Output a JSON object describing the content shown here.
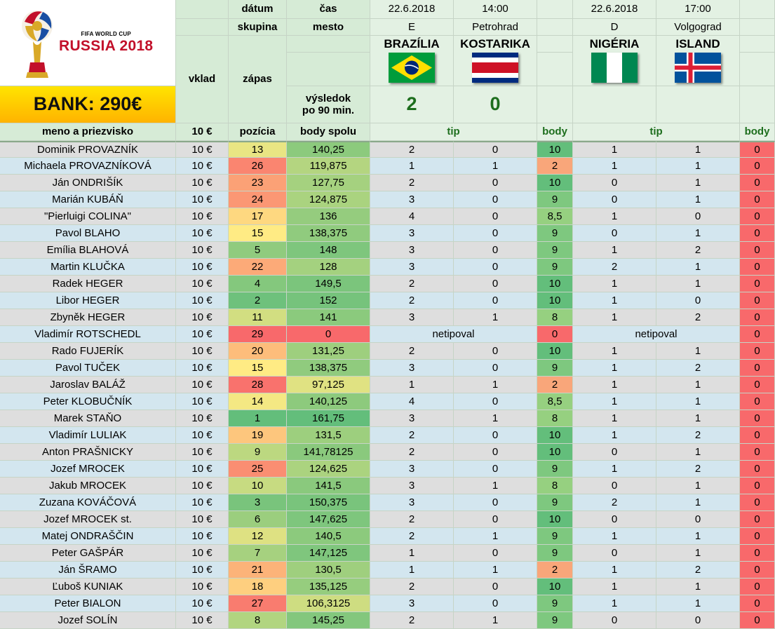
{
  "header": {
    "labels": {
      "datum": "dátum",
      "skupina": "skupina",
      "cas": "čas",
      "mesto": "mesto",
      "vklad": "vklad",
      "zapas": "zápas",
      "vysledok_line1": "výsledok",
      "vysledok_line2": "po 90 min.",
      "meno": "meno a priezvisko",
      "vklad_amount": "10 €",
      "pozicia": "pozícia",
      "body_spolu": "body spolu",
      "tip": "tip",
      "body": "body"
    },
    "logo": {
      "line1": "FIFA WORLD CUP",
      "line2": "RUSSIA 2018"
    },
    "bank": "BANK: 290€"
  },
  "matches": [
    {
      "date": "22.6.2018",
      "time": "14:00",
      "group": "E",
      "city": "Petrohrad",
      "home": "BRAZÍLIA",
      "away": "KOSTARIKA",
      "home_flag": "brazil-flag",
      "away_flag": "costa-rica-flag",
      "home_score": "2",
      "away_score": "0"
    },
    {
      "date": "22.6.2018",
      "time": "17:00",
      "group": "D",
      "city": "Volgograd",
      "home": "NIGÉRIA",
      "away": "ISLAND",
      "home_flag": "nigeria-flag",
      "away_flag": "iceland-flag",
      "home_score": "",
      "away_score": ""
    }
  ],
  "colors": {
    "header_green": "#d6ebd6",
    "text_green": "#1d6e1d",
    "bank_yellow": "#ffcc00",
    "points_red": "#f8696b",
    "points_green": "#63be7b"
  },
  "rows": [
    {
      "name": "Dominik PROVAZNÍK",
      "vklad": "10 €",
      "pos": "13",
      "total": "140,25",
      "t1": [
        "2",
        "0"
      ],
      "b1": "10",
      "t2": [
        "1",
        "1"
      ],
      "b2": "0"
    },
    {
      "name": "Michaela PROVAZNÍKOVÁ",
      "vklad": "10 €",
      "pos": "26",
      "total": "119,875",
      "t1": [
        "1",
        "1"
      ],
      "b1": "2",
      "t2": [
        "1",
        "1"
      ],
      "b2": "0"
    },
    {
      "name": "Ján ONDRIŠÍK",
      "vklad": "10 €",
      "pos": "23",
      "total": "127,75",
      "t1": [
        "2",
        "0"
      ],
      "b1": "10",
      "t2": [
        "0",
        "1"
      ],
      "b2": "0"
    },
    {
      "name": "Marián KUBÁŇ",
      "vklad": "10 €",
      "pos": "24",
      "total": "124,875",
      "t1": [
        "3",
        "0"
      ],
      "b1": "9",
      "t2": [
        "0",
        "1"
      ],
      "b2": "0"
    },
    {
      "name": "\"Pierluigi COLINA\"",
      "vklad": "10 €",
      "pos": "17",
      "total": "136",
      "t1": [
        "4",
        "0"
      ],
      "b1": "8,5",
      "t2": [
        "1",
        "0"
      ],
      "b2": "0"
    },
    {
      "name": "Pavol BLAHO",
      "vklad": "10 €",
      "pos": "15",
      "total": "138,375",
      "t1": [
        "3",
        "0"
      ],
      "b1": "9",
      "t2": [
        "0",
        "1"
      ],
      "b2": "0"
    },
    {
      "name": "Emília BLAHOVÁ",
      "vklad": "10 €",
      "pos": "5",
      "total": "148",
      "t1": [
        "3",
        "0"
      ],
      "b1": "9",
      "t2": [
        "1",
        "2"
      ],
      "b2": "0"
    },
    {
      "name": "Martin KLUČKA",
      "vklad": "10 €",
      "pos": "22",
      "total": "128",
      "t1": [
        "3",
        "0"
      ],
      "b1": "9",
      "t2": [
        "2",
        "1"
      ],
      "b2": "0"
    },
    {
      "name": "Radek HEGER",
      "vklad": "10 €",
      "pos": "4",
      "total": "149,5",
      "t1": [
        "2",
        "0"
      ],
      "b1": "10",
      "t2": [
        "1",
        "1"
      ],
      "b2": "0"
    },
    {
      "name": "Libor HEGER",
      "vklad": "10 €",
      "pos": "2",
      "total": "152",
      "t1": [
        "2",
        "0"
      ],
      "b1": "10",
      "t2": [
        "1",
        "0"
      ],
      "b2": "0"
    },
    {
      "name": "Zbyněk HEGER",
      "vklad": "10 €",
      "pos": "11",
      "total": "141",
      "t1": [
        "3",
        "1"
      ],
      "b1": "8",
      "t2": [
        "1",
        "2"
      ],
      "b2": "0"
    },
    {
      "name": "Vladimír ROTSCHEDL",
      "vklad": "10 €",
      "pos": "29",
      "total": "0",
      "note1": "netipoval",
      "b1": "0",
      "note2": "netipoval",
      "b2": "0"
    },
    {
      "name": "Rado FUJERÍK",
      "vklad": "10 €",
      "pos": "20",
      "total": "131,25",
      "t1": [
        "2",
        "0"
      ],
      "b1": "10",
      "t2": [
        "1",
        "1"
      ],
      "b2": "0"
    },
    {
      "name": "Pavol TUČEK",
      "vklad": "10 €",
      "pos": "15",
      "total": "138,375",
      "t1": [
        "3",
        "0"
      ],
      "b1": "9",
      "t2": [
        "1",
        "2"
      ],
      "b2": "0"
    },
    {
      "name": "Jaroslav BALÁŽ",
      "vklad": "10 €",
      "pos": "28",
      "total": "97,125",
      "t1": [
        "1",
        "1"
      ],
      "b1": "2",
      "t2": [
        "1",
        "1"
      ],
      "b2": "0"
    },
    {
      "name": "Peter KLOBUČNÍK",
      "vklad": "10 €",
      "pos": "14",
      "total": "140,125",
      "t1": [
        "4",
        "0"
      ],
      "b1": "8,5",
      "t2": [
        "1",
        "1"
      ],
      "b2": "0"
    },
    {
      "name": "Marek STAŇO",
      "vklad": "10 €",
      "pos": "1",
      "total": "161,75",
      "t1": [
        "3",
        "1"
      ],
      "b1": "8",
      "t2": [
        "1",
        "1"
      ],
      "b2": "0"
    },
    {
      "name": "Vladimír LULIAK",
      "vklad": "10 €",
      "pos": "19",
      "total": "131,5",
      "t1": [
        "2",
        "0"
      ],
      "b1": "10",
      "t2": [
        "1",
        "2"
      ],
      "b2": "0"
    },
    {
      "name": "Anton PRAŠNICKY",
      "vklad": "10 €",
      "pos": "9",
      "total": "141,78125",
      "t1": [
        "2",
        "0"
      ],
      "b1": "10",
      "t2": [
        "0",
        "1"
      ],
      "b2": "0"
    },
    {
      "name": "Jozef MROCEK",
      "vklad": "10 €",
      "pos": "25",
      "total": "124,625",
      "t1": [
        "3",
        "0"
      ],
      "b1": "9",
      "t2": [
        "1",
        "2"
      ],
      "b2": "0"
    },
    {
      "name": "Jakub MROCEK",
      "vklad": "10 €",
      "pos": "10",
      "total": "141,5",
      "t1": [
        "3",
        "1"
      ],
      "b1": "8",
      "t2": [
        "0",
        "1"
      ],
      "b2": "0"
    },
    {
      "name": "Zuzana KOVÁČOVÁ",
      "vklad": "10 €",
      "pos": "3",
      "total": "150,375",
      "t1": [
        "3",
        "0"
      ],
      "b1": "9",
      "t2": [
        "2",
        "1"
      ],
      "b2": "0"
    },
    {
      "name": "Jozef MROCEK st.",
      "vklad": "10 €",
      "pos": "6",
      "total": "147,625",
      "t1": [
        "2",
        "0"
      ],
      "b1": "10",
      "t2": [
        "0",
        "0"
      ],
      "b2": "0"
    },
    {
      "name": "Matej ONDRAŠČIN",
      "vklad": "10 €",
      "pos": "12",
      "total": "140,5",
      "t1": [
        "2",
        "1"
      ],
      "b1": "9",
      "t2": [
        "1",
        "1"
      ],
      "b2": "0"
    },
    {
      "name": "Peter GAŠPÁR",
      "vklad": "10 €",
      "pos": "7",
      "total": "147,125",
      "t1": [
        "1",
        "0"
      ],
      "b1": "9",
      "t2": [
        "0",
        "1"
      ],
      "b2": "0"
    },
    {
      "name": "Ján ŠRAMO",
      "vklad": "10 €",
      "pos": "21",
      "total": "130,5",
      "t1": [
        "1",
        "1"
      ],
      "b1": "2",
      "t2": [
        "1",
        "2"
      ],
      "b2": "0"
    },
    {
      "name": "Ľuboš KUNIAK",
      "vklad": "10 €",
      "pos": "18",
      "total": "135,125",
      "t1": [
        "2",
        "0"
      ],
      "b1": "10",
      "t2": [
        "1",
        "1"
      ],
      "b2": "0"
    },
    {
      "name": "Peter BIALON",
      "vklad": "10 €",
      "pos": "27",
      "total": "106,3125",
      "t1": [
        "3",
        "0"
      ],
      "b1": "9",
      "t2": [
        "1",
        "1"
      ],
      "b2": "0"
    },
    {
      "name": "Jozef SOLÍN",
      "vklad": "10 €",
      "pos": "8",
      "total": "145,25",
      "t1": [
        "2",
        "1"
      ],
      "b1": "9",
      "t2": [
        "0",
        "0"
      ],
      "b2": "0"
    }
  ]
}
